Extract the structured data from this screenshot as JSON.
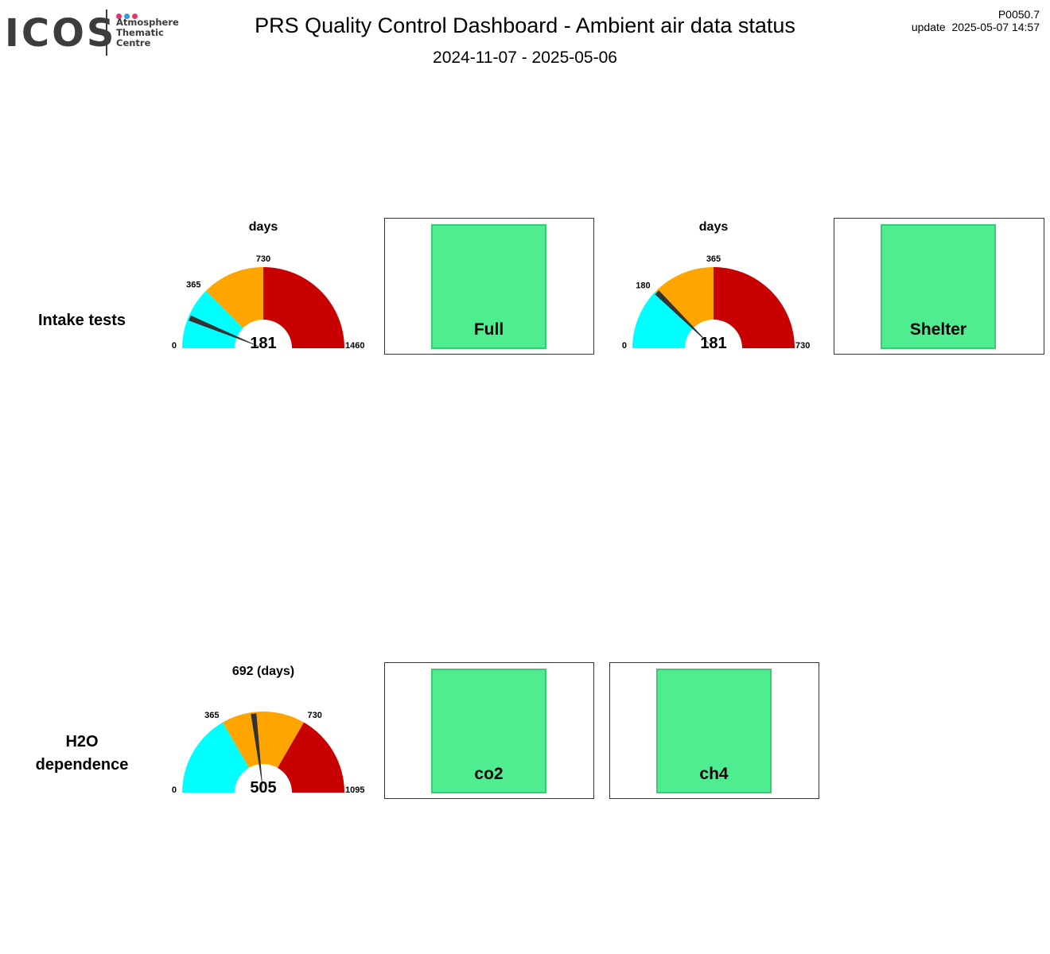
{
  "header": {
    "logo_text": "ICOS",
    "logo_sub": [
      "Atmosphere",
      "Thematic",
      "Centre"
    ],
    "title": "PRS  Quality Control Dashboard - Ambient air data status",
    "date_range": "2024-11-07 - 2025-05-06",
    "version": "P0050.7",
    "update": "update  2025-05-07 14:57"
  },
  "colors": {
    "logo_dots": [
      "#e6346f",
      "#2e9fd8",
      "#e6346f"
    ],
    "gauge_cyan": "#00ffff",
    "gauge_orange": "#ffa500",
    "gauge_red": "#c80000",
    "needle": "#333333",
    "status_green": "#4eed90"
  },
  "rows": {
    "intake": {
      "label_lines": [
        "Intake tests"
      ],
      "gauges": [
        {
          "title": "days",
          "value": 181,
          "max": 1460,
          "green_max": 365,
          "warn_max": 730,
          "needle_value": 181,
          "tick_labels": {
            "start": "0",
            "green": "365",
            "warn": "730",
            "end": "1460"
          }
        },
        {
          "title": "days",
          "value": 181,
          "max": 730,
          "green_max": 180,
          "warn_max": 365,
          "needle_value": 181,
          "tick_labels": {
            "start": "0",
            "green": "180",
            "warn": "365",
            "end": "730"
          }
        }
      ],
      "status_boxes": [
        {
          "label": "Full",
          "status": "ok"
        },
        {
          "label": "Shelter",
          "status": "ok"
        }
      ]
    },
    "h2o": {
      "label_lines": [
        "H2O",
        "dependence"
      ],
      "gauges": [
        {
          "title": "692 (days)",
          "value": 505,
          "max": 1095,
          "green_max": 365,
          "warn_max": 730,
          "needle_value": 505,
          "tick_labels": {
            "start": "0",
            "green": "365",
            "warn": "730",
            "end": "1095"
          }
        }
      ],
      "status_boxes": [
        {
          "label": "co2",
          "status": "ok"
        },
        {
          "label": "ch4",
          "status": "ok"
        }
      ]
    }
  }
}
